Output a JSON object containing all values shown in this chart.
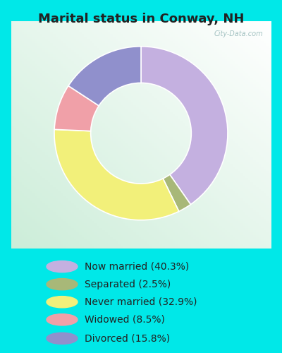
{
  "title": "Marital status in Conway, NH",
  "title_fontsize": 13,
  "slices": [
    40.3,
    2.5,
    32.9,
    8.5,
    15.8
  ],
  "labels": [
    "Now married (40.3%)",
    "Separated (2.5%)",
    "Never married (32.9%)",
    "Widowed (8.5%)",
    "Divorced (15.8%)"
  ],
  "colors": [
    "#c4b0e0",
    "#a8b878",
    "#f2f07a",
    "#f0a0a8",
    "#9090cc"
  ],
  "startangle": 90,
  "bg_outer": "#00e8e8",
  "chart_bg": "#e8f5ee",
  "watermark": "City-Data.com",
  "legend_fontsize": 10,
  "donut_width": 0.42
}
